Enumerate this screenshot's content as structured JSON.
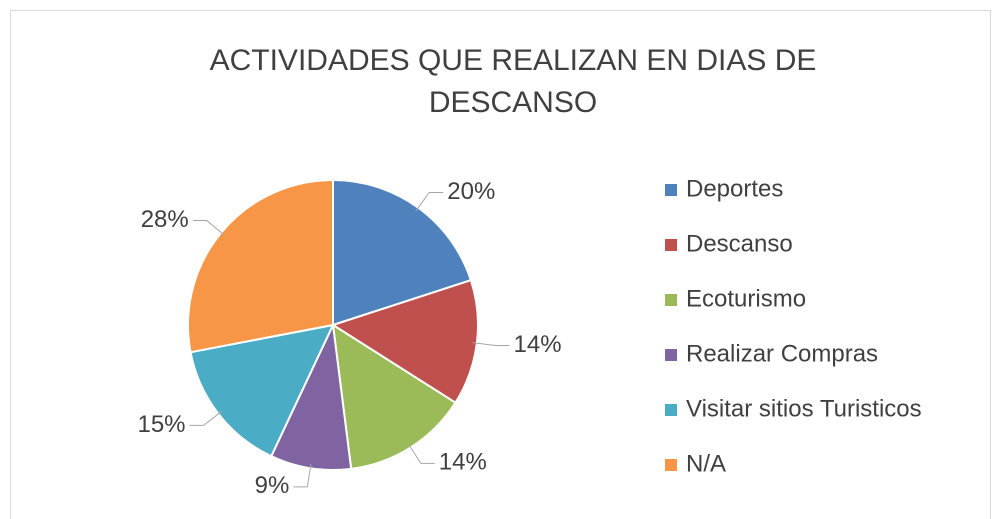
{
  "chart_data": {
    "type": "pie",
    "title": [
      "ACTIVIDADES QUE REALIZAN EN DIAS DE",
      "DESCANSO"
    ],
    "categories": [
      "Deportes",
      "Descanso",
      "Ecoturismo",
      "Realizar Compras",
      "Visitar sitios Turisticos",
      "N/A"
    ],
    "values": [
      20,
      14,
      14,
      9,
      15,
      28
    ],
    "value_labels": [
      "20%",
      "14%",
      "14%",
      "9%",
      "15%",
      "28%"
    ],
    "colors": [
      "#4f81bd",
      "#c0504d",
      "#9bbb59",
      "#8064a2",
      "#4bacc6",
      "#f79646"
    ],
    "legend": "right"
  }
}
